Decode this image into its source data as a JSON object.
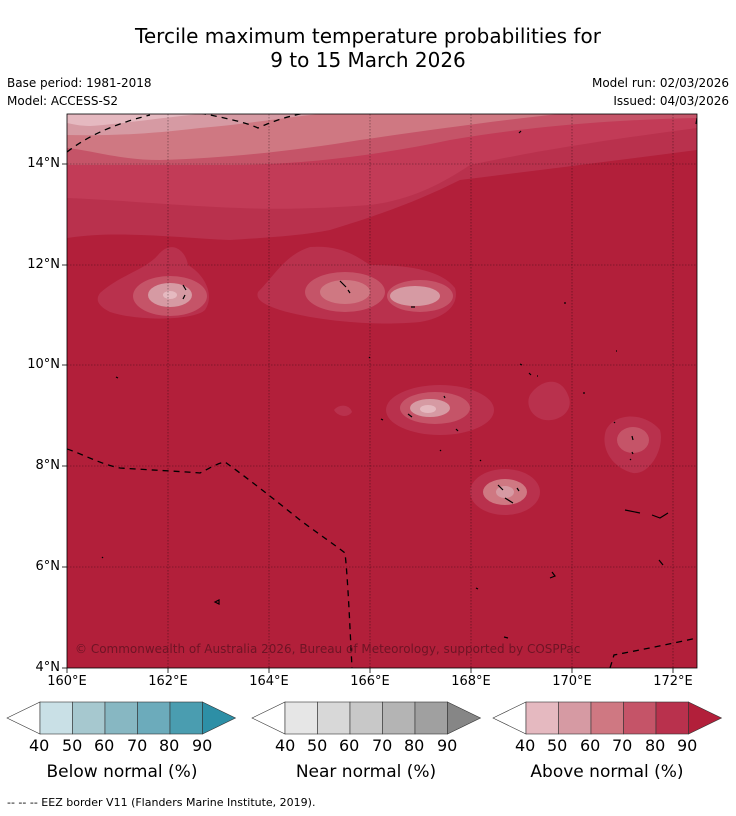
{
  "title": {
    "line1": "Tercile maximum temperature probabilities for",
    "line2": "9 to 15 March 2026"
  },
  "meta": {
    "base_period": "Base period: 1981-2018",
    "model": "Model: ACCESS-S2",
    "model_run": "Model run: 02/03/2026",
    "issued": "Issued: 04/03/2026"
  },
  "map": {
    "lat_ticks": [
      "14°N",
      "12°N",
      "10°N",
      "8°N",
      "6°N",
      "4°N"
    ],
    "lon_ticks": [
      "160°E",
      "162°E",
      "164°E",
      "166°E",
      "168°E",
      "170°E",
      "172°E"
    ],
    "lon_range": [
      160,
      172.5
    ],
    "lat_range": [
      4,
      15
    ],
    "copyright": "© Commonwealth of Australia 2026, Bureau of Meteorology, supported by COSPPac",
    "background_color": "#b21f3a"
  },
  "colorbars": [
    {
      "title": "Below normal (%)",
      "labels": [
        "40",
        "50",
        "60",
        "70",
        "80",
        "90"
      ],
      "colors": [
        "#ffffff",
        "#c9e0e6",
        "#a6c8cf",
        "#87b7c2",
        "#6cabbb",
        "#4a9db0",
        "#2d8fa6"
      ]
    },
    {
      "title": "Near normal (%)",
      "labels": [
        "40",
        "50",
        "60",
        "70",
        "80",
        "90"
      ],
      "colors": [
        "#ffffff",
        "#e6e6e6",
        "#d8d8d8",
        "#c8c8c8",
        "#b4b4b4",
        "#a0a0a0",
        "#868686"
      ]
    },
    {
      "title": "Above normal (%)",
      "labels": [
        "40",
        "50",
        "60",
        "70",
        "80",
        "90"
      ],
      "colors": [
        "#ffffff",
        "#e5b9c0",
        "#d69aa3",
        "#cf7882",
        "#c55468",
        "#b9314d",
        "#b21f3a"
      ]
    }
  ],
  "footer": "--  --  -- EEZ border V11 (Flanders Marine Institute, 2019)."
}
